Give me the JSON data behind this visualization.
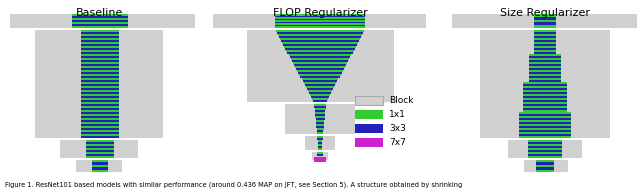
{
  "fig_width": 6.4,
  "fig_height": 1.96,
  "panel_titles": [
    "Baseline",
    "FLOP Regularizer",
    "Size Regularizer"
  ],
  "colors": {
    "block_bg": "#d0d0d0",
    "green": "#33cc33",
    "blue": "#2222bb",
    "magenta": "#cc22cc",
    "white": "#ffffff"
  },
  "legend_items": [
    {
      "label": "Block",
      "color": "#d0d0d0",
      "edgecolor": "#aaaaaa"
    },
    {
      "label": "1x1",
      "color": "#33cc33",
      "edgecolor": null
    },
    {
      "label": "3x3",
      "color": "#2222bb",
      "edgecolor": null
    },
    {
      "label": "7x7",
      "color": "#cc22cc",
      "edgecolor": null
    }
  ],
  "caption": "Figure 1. ResNet101 based models with similar performance (around 0.436 MAP on JFT, see Section 5). A structure obtained by shrinking"
}
